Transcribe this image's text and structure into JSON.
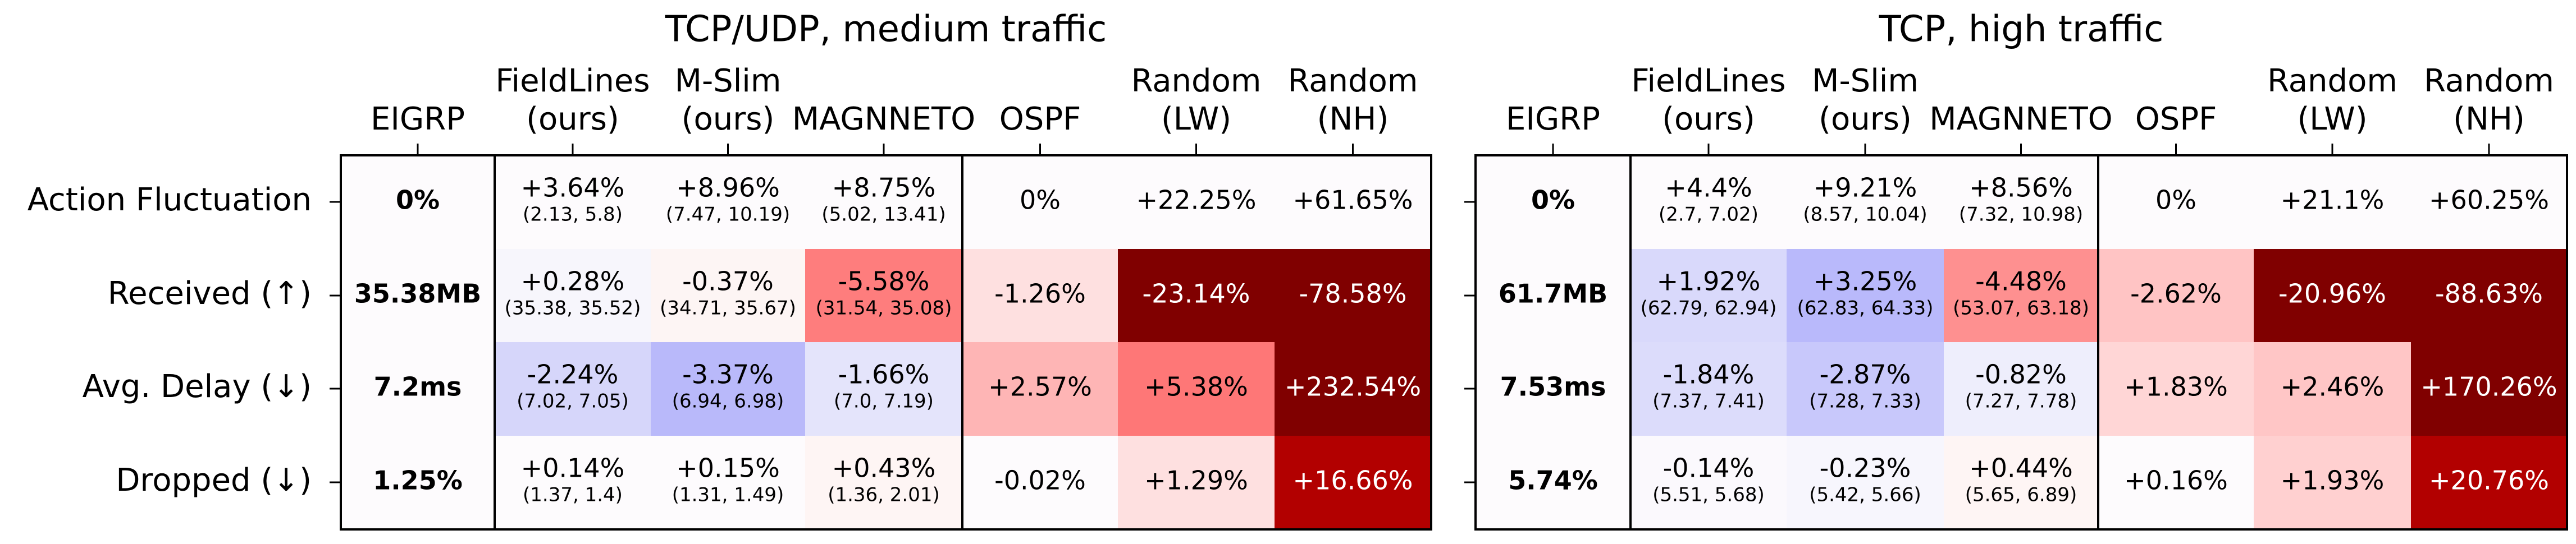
{
  "chart_data": [
    {
      "type": "heatmap",
      "title": "TCP/UDP, medium traffic",
      "columns": [
        {
          "line1": "",
          "line2": "EIGRP"
        },
        {
          "line1": "FieldLines",
          "line2": "(ours)"
        },
        {
          "line1": "M-Slim",
          "line2": "(ours)"
        },
        {
          "line1": "",
          "line2": "MAGNNETO"
        },
        {
          "line1": "",
          "line2": "OSPF"
        },
        {
          "line1": "Random",
          "line2": "(LW)"
        },
        {
          "line1": "Random",
          "line2": "(NH)"
        }
      ],
      "rows": [
        "Action Fluctuation",
        "Received (↑)",
        "Avg. Delay (↓)",
        "Dropped (↓)"
      ],
      "baseline": [
        "0%",
        "35.38MB",
        "7.2ms",
        "1.25%"
      ],
      "cells": [
        [
          {
            "text": "+3.64%",
            "sub": "(2.13, 5.8)",
            "color": "#fdfbfd"
          },
          {
            "text": "+8.96%",
            "sub": "(7.47, 10.19)",
            "color": "#fdfbfd"
          },
          {
            "text": "+8.75%",
            "sub": "(5.02, 13.41)",
            "color": "#fdfbfd"
          },
          {
            "text": "0%",
            "sub": "",
            "color": "#fdfbfd"
          },
          {
            "text": "+22.25%",
            "sub": "",
            "color": "#fdfbfd"
          },
          {
            "text": "+61.65%",
            "sub": "",
            "color": "#fdfbfd"
          }
        ],
        [
          {
            "text": "+0.28%",
            "sub": "(35.38, 35.52)",
            "color": "#f7f6fc"
          },
          {
            "text": "-0.37%",
            "sub": "(34.71, 35.67)",
            "color": "#fdf5f4"
          },
          {
            "text": "-5.58%",
            "sub": "(31.54, 35.08)",
            "color": "#fe7d7d"
          },
          {
            "text": "-1.26%",
            "sub": "",
            "color": "#fee0e0"
          },
          {
            "text": "-23.14%",
            "sub": "",
            "color": "#800000"
          },
          {
            "text": "-78.58%",
            "sub": "",
            "color": "#800000"
          }
        ],
        [
          {
            "text": "-2.24%",
            "sub": "(7.02, 7.05)",
            "color": "#d6d6fa"
          },
          {
            "text": "-3.37%",
            "sub": "(6.94, 6.98)",
            "color": "#b9b9fa"
          },
          {
            "text": "-1.66%",
            "sub": "(7.0, 7.19)",
            "color": "#e4e4fb"
          },
          {
            "text": "+2.57%",
            "sub": "",
            "color": "#feb5b5"
          },
          {
            "text": "+5.38%",
            "sub": "",
            "color": "#fe7777"
          },
          {
            "text": "+232.54%",
            "sub": "",
            "color": "#800000"
          }
        ],
        [
          {
            "text": "+0.14%",
            "sub": "(1.37, 1.4)",
            "color": "#fdfbfd"
          },
          {
            "text": "+0.15%",
            "sub": "(1.31, 1.49)",
            "color": "#fdfbfd"
          },
          {
            "text": "+0.43%",
            "sub": "(1.36, 2.01)",
            "color": "#fef5f4"
          },
          {
            "text": "-0.02%",
            "sub": "",
            "color": "#fdfbfd"
          },
          {
            "text": "+1.29%",
            "sub": "",
            "color": "#fee0e0"
          },
          {
            "text": "+16.66%",
            "sub": "",
            "color": "#b20000"
          }
        ]
      ]
    },
    {
      "type": "heatmap",
      "title": "TCP, high traffic",
      "columns": [
        {
          "line1": "",
          "line2": "EIGRP"
        },
        {
          "line1": "FieldLines",
          "line2": "(ours)"
        },
        {
          "line1": "M-Slim",
          "line2": "(ours)"
        },
        {
          "line1": "",
          "line2": "MAGNNETO"
        },
        {
          "line1": "",
          "line2": "OSPF"
        },
        {
          "line1": "Random",
          "line2": "(LW)"
        },
        {
          "line1": "Random",
          "line2": "(NH)"
        }
      ],
      "rows": [
        "Action Fluctuation",
        "Received (↑)",
        "Avg. Delay (↓)",
        "Dropped (↓)"
      ],
      "baseline": [
        "0%",
        "61.7MB",
        "7.53ms",
        "5.74%"
      ],
      "cells": [
        [
          {
            "text": "+4.4%",
            "sub": "(2.7, 7.02)",
            "color": "#fdfbfd"
          },
          {
            "text": "+9.21%",
            "sub": "(8.57, 10.04)",
            "color": "#fdfbfd"
          },
          {
            "text": "+8.56%",
            "sub": "(7.32, 10.98)",
            "color": "#fdfbfd"
          },
          {
            "text": "0%",
            "sub": "",
            "color": "#fdfbfd"
          },
          {
            "text": "+21.1%",
            "sub": "",
            "color": "#fdfbfd"
          },
          {
            "text": "+60.25%",
            "sub": "",
            "color": "#fdfbfd"
          }
        ],
        [
          {
            "text": "+1.92%",
            "sub": "(62.79, 62.94)",
            "color": "#d9d9fb"
          },
          {
            "text": "+3.25%",
            "sub": "(62.83, 64.33)",
            "color": "#b9b9fb"
          },
          {
            "text": "-4.48%",
            "sub": "(53.07, 63.18)",
            "color": "#fe9090"
          },
          {
            "text": "-2.62%",
            "sub": "",
            "color": "#ffc4c4"
          },
          {
            "text": "-20.96%",
            "sub": "",
            "color": "#800000"
          },
          {
            "text": "-88.63%",
            "sub": "",
            "color": "#800000"
          }
        ],
        [
          {
            "text": "-1.84%",
            "sub": "(7.37, 7.41)",
            "color": "#dcdcfb"
          },
          {
            "text": "-2.87%",
            "sub": "(7.28, 7.33)",
            "color": "#c8c8fb"
          },
          {
            "text": "-0.82%",
            "sub": "(7.27, 7.78)",
            "color": "#eeeefc"
          },
          {
            "text": "+1.83%",
            "sub": "",
            "color": "#ffd6d6"
          },
          {
            "text": "+2.46%",
            "sub": "",
            "color": "#ffc6c6"
          },
          {
            "text": "+170.26%",
            "sub": "",
            "color": "#800000"
          }
        ],
        [
          {
            "text": "-0.14%",
            "sub": "(5.51, 5.68)",
            "color": "#fbf9fd"
          },
          {
            "text": "-0.23%",
            "sub": "(5.42, 5.66)",
            "color": "#f7f6fd"
          },
          {
            "text": "+0.44%",
            "sub": "(5.65, 6.89)",
            "color": "#fef5f4"
          },
          {
            "text": "+0.16%",
            "sub": "",
            "color": "#fdfbfd"
          },
          {
            "text": "+1.93%",
            "sub": "",
            "color": "#ffd0d0"
          },
          {
            "text": "+20.76%",
            "sub": "",
            "color": "#b20000"
          }
        ]
      ]
    }
  ]
}
